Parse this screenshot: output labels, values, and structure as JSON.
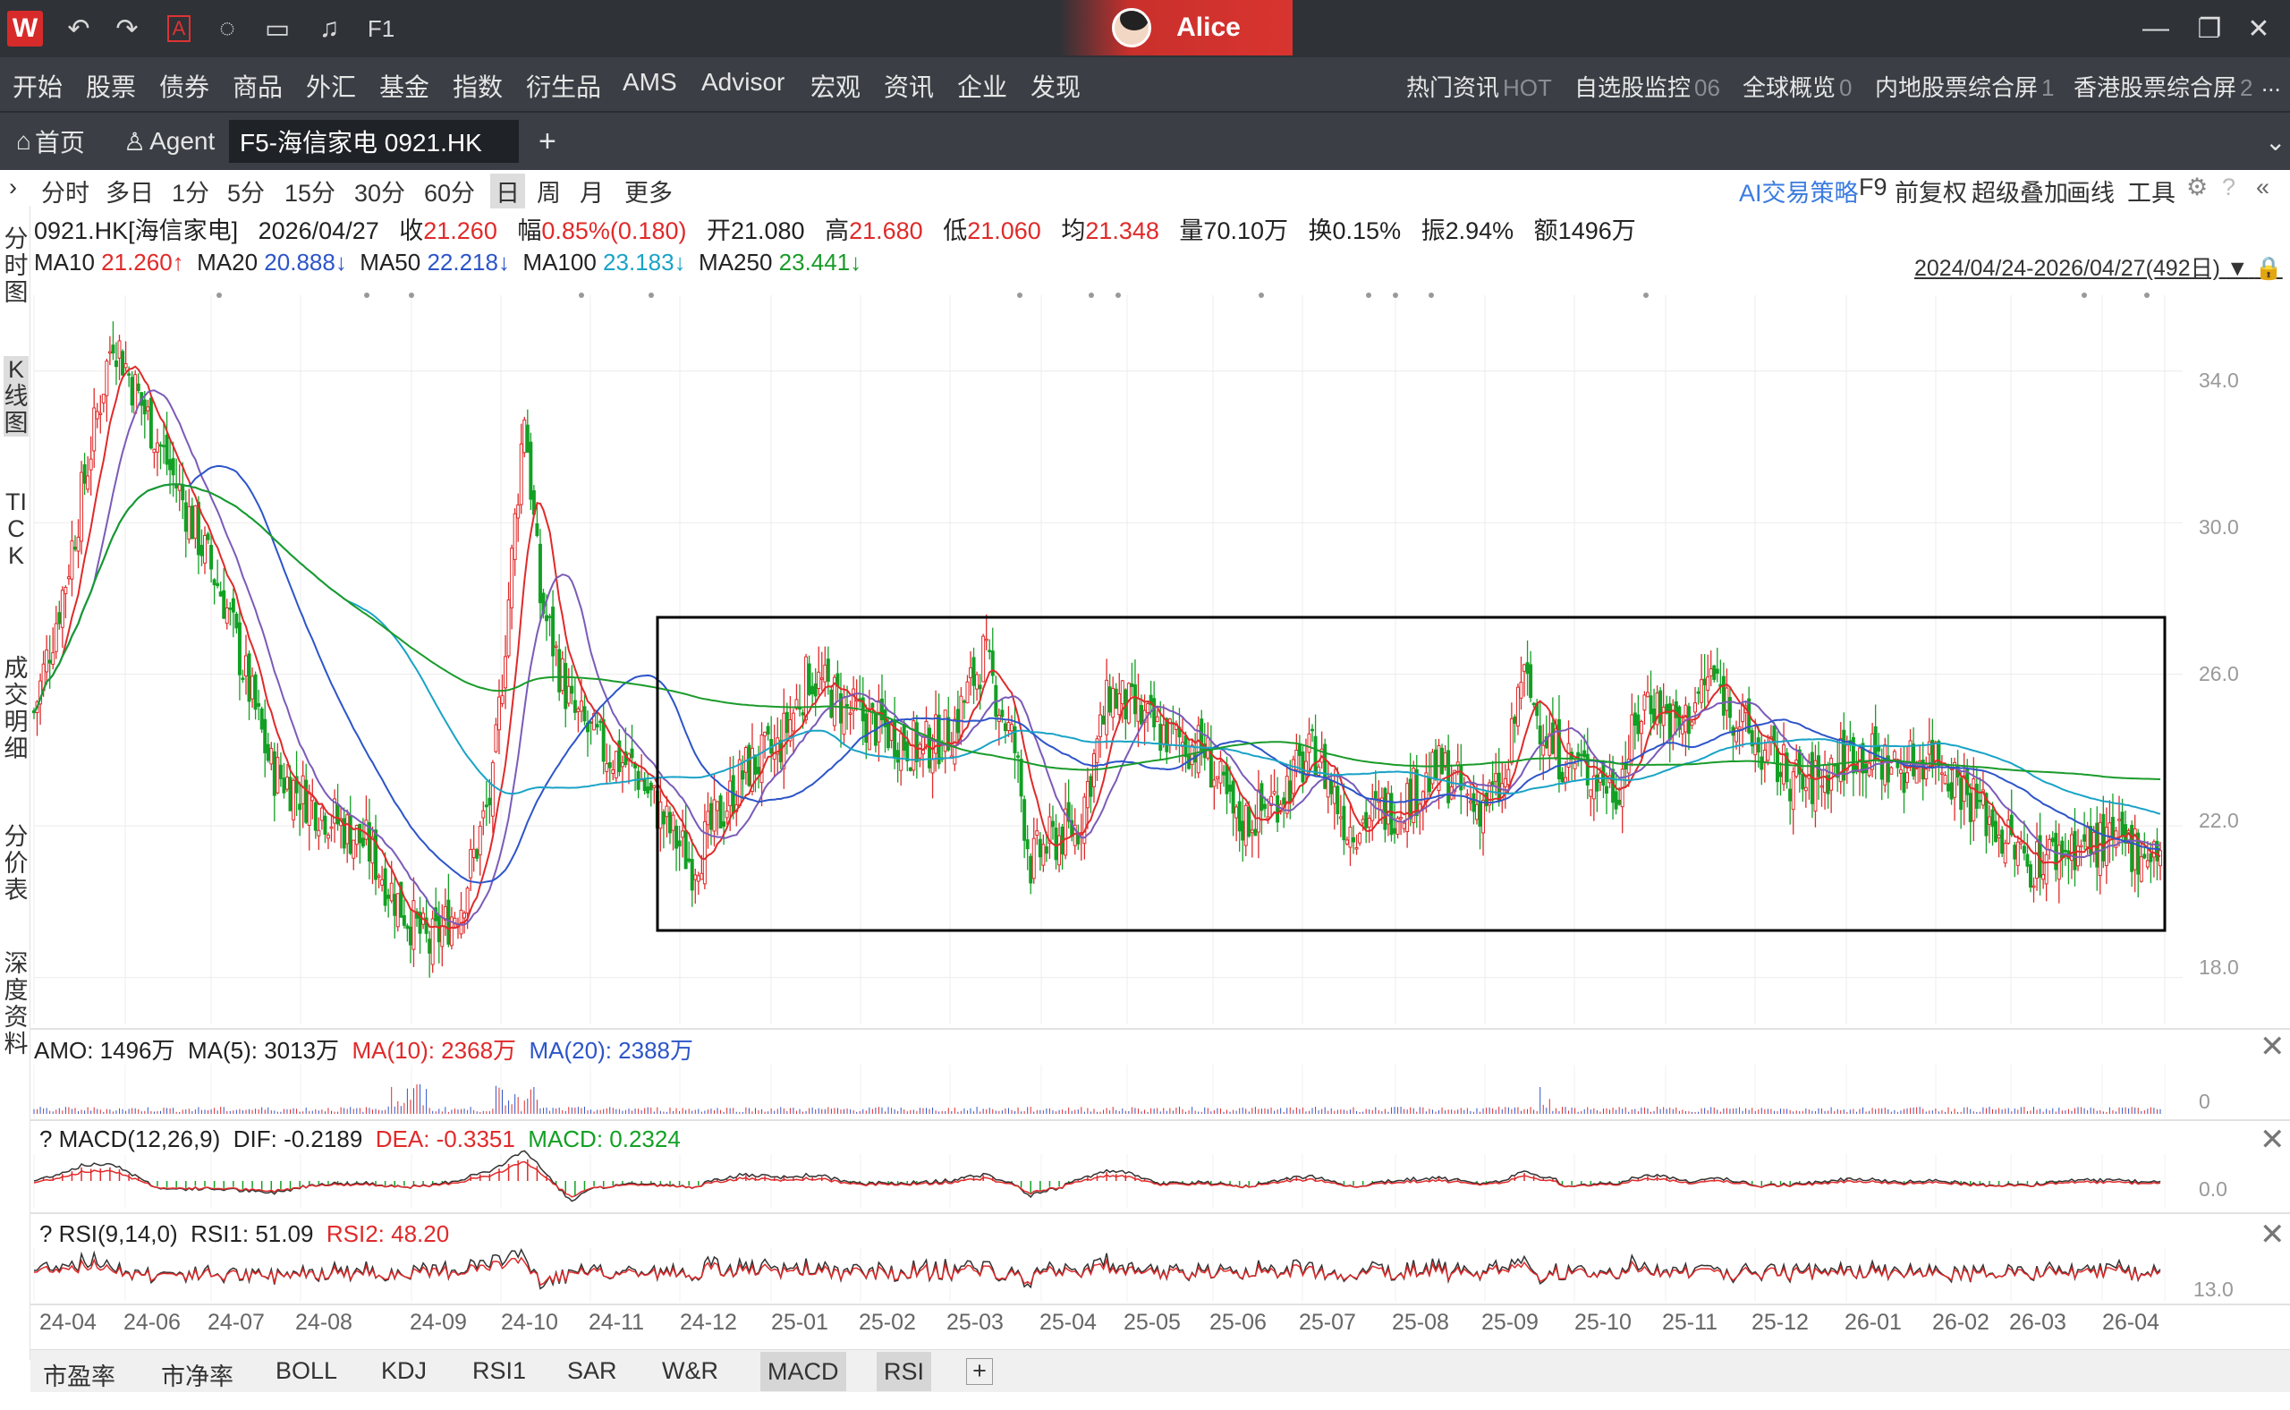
{
  "titlebar": {
    "app_logo": "W",
    "icons": [
      "undo-icon",
      "redo-icon",
      "text-a-icon",
      "chat-icon",
      "screen-icon",
      "bell-icon",
      "f1-icon"
    ],
    "f1_label": "F1",
    "user_name": "Alice",
    "window_controls": [
      "minimize-icon",
      "restore-icon",
      "close-icon"
    ]
  },
  "menu": {
    "items": [
      "开始",
      "股票",
      "债券",
      "商品",
      "外汇",
      "基金",
      "指数",
      "衍生品",
      "AMS",
      "Advisor",
      "宏观",
      "资讯",
      "企业",
      "发现"
    ],
    "right": [
      {
        "label": "热门资讯",
        "badge": "HOT"
      },
      {
        "label": "自选股监控",
        "badge": "06"
      },
      {
        "label": "全球概览",
        "badge": "0"
      },
      {
        "label": "内地股票综合屏",
        "badge": "1"
      },
      {
        "label": "香港股票综合屏",
        "badge": "2"
      }
    ],
    "more": "..."
  },
  "tabs": [
    {
      "label": "首页",
      "icon": "home-icon"
    },
    {
      "label": "Agent",
      "icon": "user-icon"
    },
    {
      "label": "F5-海信家电 0921.HK"
    }
  ],
  "tab_add": "+",
  "tab_dropdown": "chevron-down-icon",
  "toolbar": {
    "freq": [
      "分时",
      "多日",
      "1分",
      "5分",
      "15分",
      "30分",
      "60分",
      "日",
      "周",
      "月",
      "更多"
    ],
    "selected": "日",
    "right": [
      "AI交易策略",
      "F9",
      "前复权",
      "超级叠加",
      "画线",
      "工具"
    ]
  },
  "leftnav": [
    "分时图",
    "K线图",
    "TICK",
    "成交明细",
    "分价表",
    "深度资料"
  ],
  "leftnav_selected": "K线图",
  "quote": {
    "code": "0921.HK[海信家电]",
    "date": "2026/04/27",
    "close_label": "收",
    "close": "21.260",
    "chg_label": "幅",
    "chg": "0.85%(0.180)",
    "open_label": "开",
    "open": "21.080",
    "high_label": "高",
    "high": "21.680",
    "low_label": "低",
    "low": "21.060",
    "avg_label": "均",
    "avg": "21.348",
    "vol_label": "量",
    "vol": "70.10万",
    "turn_label": "换",
    "turn": "0.15%",
    "amp_label": "振",
    "amp": "2.94%",
    "amt_label": "额",
    "amt": "1496万"
  },
  "ma": [
    {
      "name": "MA10",
      "value": "21.260↑",
      "color": "#e02a2a"
    },
    {
      "name": "MA20",
      "value": "20.888↓",
      "color": "#2d55c9"
    },
    {
      "name": "MA50",
      "value": "22.218↓",
      "color": "#2d55c9"
    },
    {
      "name": "MA100",
      "value": "23.183↓",
      "color": "#19a3c7"
    },
    {
      "name": "MA250",
      "value": "23.441↓",
      "color": "#1a9b2a"
    }
  ],
  "range": "2024/04/24-2026/04/27(492日)",
  "price_axis": [
    "34.0",
    "30.0",
    "26.0",
    "22.0",
    "18.0"
  ],
  "amo": {
    "label": "AMO: 1496万",
    "ma5": "MA(5): 3013万",
    "ma10": "MA(10): 2368万",
    "ma20": "MA(20): 2388万",
    "axis": "0"
  },
  "macd": {
    "label": "? MACD(12,26,9)",
    "dif": "DIF: -0.2189",
    "dea": "DEA: -0.3351",
    "macd": "MACD: 0.2324",
    "axis": "0.0"
  },
  "rsi": {
    "label": "? RSI(9,14,0)",
    "rsi1": "RSI1: 51.09",
    "rsi2": "RSI2: 48.20",
    "axis": "13.0"
  },
  "x_axis": [
    "24-04",
    "24-06",
    "24-07",
    "24-08",
    "24-09",
    "24-10",
    "24-11",
    "24-12",
    "25-01",
    "25-02",
    "25-03",
    "25-04",
    "25-05",
    "25-06",
    "25-07",
    "25-08",
    "25-09",
    "25-10",
    "25-11",
    "25-12",
    "26-01",
    "26-02",
    "26-03",
    "26-04"
  ],
  "bottom_tabs": [
    "市盈率",
    "市净率",
    "BOLL",
    "KDJ",
    "RSI1",
    "SAR",
    "W&R",
    "MACD",
    "RSI"
  ],
  "bottom_selected": [
    "MACD",
    "RSI"
  ],
  "bottom_add": "+",
  "colors": {
    "up": "#e02a2a",
    "down": "#13a024",
    "highlight_box": "#000000"
  },
  "chart_data": {
    "type": "candlestick",
    "series_anchor": [
      [
        0,
        25.0
      ],
      [
        10,
        28.5
      ],
      [
        18,
        32.0
      ],
      [
        25,
        35.0
      ],
      [
        32,
        33.5
      ],
      [
        40,
        32.0
      ],
      [
        50,
        30.0
      ],
      [
        60,
        28.0
      ],
      [
        70,
        25.0
      ],
      [
        75,
        23.5
      ],
      [
        90,
        22.5
      ],
      [
        105,
        21.5
      ],
      [
        115,
        20.0
      ],
      [
        125,
        18.8
      ],
      [
        135,
        20.0
      ],
      [
        145,
        23.0
      ],
      [
        150,
        28.0
      ],
      [
        155,
        33.0
      ],
      [
        160,
        28.0
      ],
      [
        170,
        25.0
      ],
      [
        180,
        24.0
      ],
      [
        190,
        23.5
      ],
      [
        200,
        22.0
      ],
      [
        208,
        21.0
      ],
      [
        215,
        22.0
      ],
      [
        225,
        23.5
      ],
      [
        235,
        24.0
      ],
      [
        245,
        26.0
      ],
      [
        258,
        25.0
      ],
      [
        270,
        24.5
      ],
      [
        280,
        24.0
      ],
      [
        290,
        24.5
      ],
      [
        300,
        26.5
      ],
      [
        310,
        24.0
      ],
      [
        315,
        21.0
      ],
      [
        320,
        21.5
      ],
      [
        330,
        22.0
      ],
      [
        340,
        25.5
      ],
      [
        355,
        24.5
      ],
      [
        370,
        24.0
      ],
      [
        380,
        22.0
      ],
      [
        390,
        22.5
      ],
      [
        405,
        24.0
      ],
      [
        415,
        22.0
      ],
      [
        430,
        22.5
      ],
      [
        445,
        23.5
      ],
      [
        455,
        22.5
      ],
      [
        465,
        23.0
      ],
      [
        470,
        26.0
      ],
      [
        480,
        24.0
      ],
      [
        490,
        23.5
      ],
      [
        500,
        23.0
      ],
      [
        510,
        25.5
      ],
      [
        520,
        24.5
      ],
      [
        530,
        26.0
      ],
      [
        545,
        24.0
      ],
      [
        560,
        23.0
      ],
      [
        575,
        24.0
      ],
      [
        590,
        23.5
      ],
      [
        600,
        24.0
      ],
      [
        615,
        22.5
      ],
      [
        630,
        21.0
      ],
      [
        645,
        21.5
      ],
      [
        660,
        21.5
      ],
      [
        672,
        21.3
      ]
    ],
    "ylim": [
      17,
      36
    ],
    "price_ticks": [
      34,
      30,
      26,
      22,
      18
    ]
  }
}
